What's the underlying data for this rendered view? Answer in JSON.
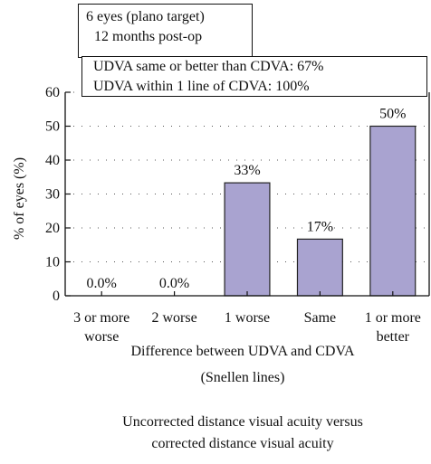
{
  "chart_data": {
    "type": "bar",
    "annotations": [
      [
        "6 eyes (plano target)",
        "12 months post-op"
      ],
      [
        "UDVA same or better than CDVA: 67%",
        "UDVA within 1 line of CDVA: 100%"
      ]
    ],
    "title": [
      "Uncorrected distance visual acuity versus",
      "corrected distance visual acuity"
    ],
    "xlabel": [
      "Difference between UDVA and CDVA",
      "(Snellen lines)"
    ],
    "ylabel": "% of eyes (%)",
    "categories": [
      "3 or more worse",
      "2 worse",
      "1 worse",
      "Same",
      "1 or more better"
    ],
    "values": [
      0,
      0,
      33.3,
      16.7,
      50
    ],
    "value_labels": [
      "0.0%",
      "0.0%",
      "33%",
      "17%",
      "50%"
    ],
    "color": "#a9a3d0",
    "ylim": [
      0,
      60
    ],
    "yticks": [
      0,
      10,
      20,
      30,
      40,
      50,
      60
    ],
    "grid": true
  }
}
